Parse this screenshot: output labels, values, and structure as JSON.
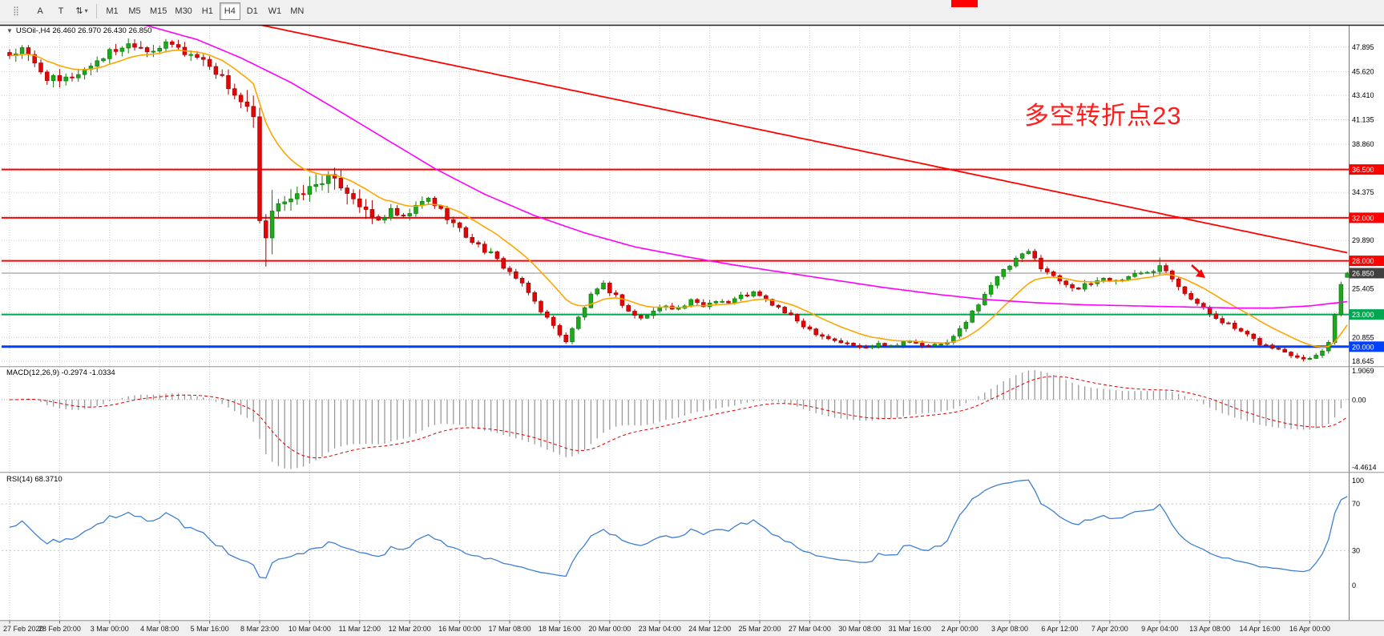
{
  "toolbar": {
    "icons": {
      "handle": "⣿",
      "caret": "▾",
      "collapse_caret": "▼"
    },
    "buttons": [
      {
        "label": "A"
      },
      {
        "label": "T"
      },
      {
        "label": "⇅"
      }
    ],
    "timeframes": [
      {
        "label": "M1",
        "active": false
      },
      {
        "label": "M5",
        "active": false
      },
      {
        "label": "M15",
        "active": false
      },
      {
        "label": "M30",
        "active": false
      },
      {
        "label": "H1",
        "active": false
      },
      {
        "label": "H4",
        "active": true
      },
      {
        "label": "D1",
        "active": false
      },
      {
        "label": "W1",
        "active": false
      },
      {
        "label": "MN",
        "active": false
      }
    ],
    "artifact_color": "#FF0000"
  },
  "chart": {
    "title_line": "USOil-,H4 26.460 26.970 26.430 26.850",
    "ohlc": {
      "open": "26.460",
      "high": "26.970",
      "low": "26.430",
      "close": "26.850"
    },
    "macd_label": "MACD(12,26,9) -0.2974 -1.0334",
    "rsi_label": "RSI(14) 68.3710",
    "annotation": {
      "text": "多空转折点23",
      "color": "#FF1E1E"
    },
    "current_price": {
      "value": 26.85,
      "label": "26.850",
      "tag_bg": "#404040"
    },
    "levels": [
      {
        "price": 36.5,
        "label": "36.500",
        "color": "#FF0000"
      },
      {
        "price": 32.0,
        "label": "32.000",
        "color": "#FF0000"
      },
      {
        "price": 28.0,
        "label": "28.000",
        "color": "#FF0000"
      },
      {
        "price": 23.0,
        "label": "23.000",
        "color": "#00A651"
      },
      {
        "price": 20.0,
        "label": "20.000",
        "color": "#0040FF"
      }
    ],
    "price_axis": {
      "labels": [
        47.895,
        45.62,
        43.41,
        41.135,
        38.86,
        34.375,
        29.89,
        25.405,
        20.855,
        18.645
      ],
      "grid_extra": [
        36.585,
        32.15,
        27.66,
        23.175
      ]
    },
    "time_axis": {
      "bars_per_label": 8,
      "labels": [
        "27 Feb 2020",
        "28 Feb 20:00",
        "3 Mar 00:00",
        "4 Mar 08:00",
        "5 Mar 16:00",
        "8 Mar 23:00",
        "10 Mar 04:00",
        "11 Mar 12:00",
        "12 Mar 20:00",
        "16 Mar 00:00",
        "17 Mar 08:00",
        "18 Mar 16:00",
        "20 Mar 00:00",
        "23 Mar 04:00",
        "24 Mar 12:00",
        "25 Mar 20:00",
        "27 Mar 04:00",
        "30 Mar 08:00",
        "31 Mar 16:00",
        "2 Apr 00:00",
        "3 Apr 08:00",
        "6 Apr 12:00",
        "7 Apr 20:00",
        "9 Apr 04:00",
        "13 Apr 08:00",
        "14 Apr 16:00",
        "16 Apr 00:00"
      ]
    }
  },
  "chart_data": {
    "type": "candlestick+indicators",
    "symbol": "USOil-",
    "timeframe": "H4",
    "bars": 215,
    "colors": {
      "candle_up": "#1CAA1C",
      "candle_up_stroke": "#0E7A0E",
      "candle_down": "#E00707",
      "candle_down_stroke": "#A80000",
      "ma_fast": "#FFA500",
      "ma_mid": "#FF00FF",
      "ma_long": "#FF0000",
      "grid": "#CDCDCD",
      "bid_line": "#8A8A8A"
    },
    "close_anchors": [
      [
        0,
        47.2
      ],
      [
        2,
        47.6
      ],
      [
        4,
        46.3
      ],
      [
        6,
        45.1
      ],
      [
        8,
        44.6
      ],
      [
        10,
        45.2
      ],
      [
        12,
        45.8
      ],
      [
        14,
        46.7
      ],
      [
        16,
        47.4
      ],
      [
        18,
        48.0
      ],
      [
        20,
        48.3
      ],
      [
        22,
        47.7
      ],
      [
        24,
        47.9
      ],
      [
        26,
        48.1
      ],
      [
        28,
        47.4
      ],
      [
        30,
        47.0
      ],
      [
        32,
        46.3
      ],
      [
        34,
        45.0
      ],
      [
        36,
        43.5
      ],
      [
        38,
        42.1
      ],
      [
        39,
        41.2
      ],
      [
        40,
        31.6
      ],
      [
        41,
        29.9
      ],
      [
        42,
        32.8
      ],
      [
        43,
        33.5
      ],
      [
        45,
        33.6
      ],
      [
        47,
        34.4
      ],
      [
        49,
        35.1
      ],
      [
        51,
        35.8
      ],
      [
        53,
        35.0
      ],
      [
        55,
        33.9
      ],
      [
        57,
        32.5
      ],
      [
        59,
        31.7
      ],
      [
        61,
        32.6
      ],
      [
        63,
        31.9
      ],
      [
        65,
        33.0
      ],
      [
        67,
        33.8
      ],
      [
        69,
        32.7
      ],
      [
        71,
        31.5
      ],
      [
        73,
        30.3
      ],
      [
        75,
        29.4
      ],
      [
        77,
        28.6
      ],
      [
        79,
        27.5
      ],
      [
        81,
        26.4
      ],
      [
        83,
        25.0
      ],
      [
        85,
        23.4
      ],
      [
        87,
        21.9
      ],
      [
        89,
        20.5
      ],
      [
        91,
        22.7
      ],
      [
        93,
        24.7
      ],
      [
        95,
        25.7
      ],
      [
        97,
        24.7
      ],
      [
        99,
        23.3
      ],
      [
        101,
        22.6
      ],
      [
        103,
        23.3
      ],
      [
        105,
        23.9
      ],
      [
        107,
        23.5
      ],
      [
        109,
        24.2
      ],
      [
        111,
        23.8
      ],
      [
        113,
        24.4
      ],
      [
        115,
        24.1
      ],
      [
        117,
        24.7
      ],
      [
        119,
        25.0
      ],
      [
        121,
        24.3
      ],
      [
        123,
        23.6
      ],
      [
        125,
        22.8
      ],
      [
        127,
        22.0
      ],
      [
        129,
        21.3
      ],
      [
        131,
        20.8
      ],
      [
        133,
        20.4
      ],
      [
        135,
        20.1
      ],
      [
        137,
        19.9
      ],
      [
        139,
        20.4
      ],
      [
        141,
        20.1
      ],
      [
        143,
        20.5
      ],
      [
        145,
        20.3
      ],
      [
        147,
        20.0
      ],
      [
        149,
        20.2
      ],
      [
        151,
        20.9
      ],
      [
        153,
        22.3
      ],
      [
        155,
        24.1
      ],
      [
        157,
        25.8
      ],
      [
        159,
        27.0
      ],
      [
        161,
        28.1
      ],
      [
        163,
        28.8
      ],
      [
        165,
        27.5
      ],
      [
        167,
        26.5
      ],
      [
        169,
        25.9
      ],
      [
        171,
        25.4
      ],
      [
        173,
        25.9
      ],
      [
        175,
        26.4
      ],
      [
        177,
        26.1
      ],
      [
        179,
        26.6
      ],
      [
        181,
        26.8
      ],
      [
        183,
        27.2
      ],
      [
        184,
        27.8
      ],
      [
        186,
        26.5
      ],
      [
        188,
        25.1
      ],
      [
        190,
        24.0
      ],
      [
        192,
        23.1
      ],
      [
        194,
        22.4
      ],
      [
        196,
        21.7
      ],
      [
        198,
        21.0
      ],
      [
        200,
        20.3
      ],
      [
        202,
        19.9
      ],
      [
        204,
        19.5
      ],
      [
        206,
        19.1
      ],
      [
        208,
        18.9
      ],
      [
        209,
        19.2
      ],
      [
        210,
        19.6
      ],
      [
        211,
        20.4
      ],
      [
        212,
        23.0
      ],
      [
        213,
        25.8
      ],
      [
        214,
        26.85
      ]
    ],
    "special_bars": {
      "41": {
        "low": 27.45
      },
      "42": {
        "high": 34.6,
        "low": 28.6
      },
      "51": {
        "high": 36.35
      },
      "163": {
        "high": 29.1
      },
      "184": {
        "high": 28.3
      },
      "207": {
        "low": 18.62
      },
      "214": {
        "open": 26.46,
        "high": 26.97,
        "low": 26.43,
        "close": 26.85
      }
    },
    "ma_fast_period": 13,
    "ma_mid_anchors": [
      [
        0,
        51.5
      ],
      [
        15,
        50.6
      ],
      [
        22,
        49.9
      ],
      [
        30,
        48.6
      ],
      [
        37,
        46.9
      ],
      [
        45,
        44.6
      ],
      [
        52,
        42.2
      ],
      [
        60,
        39.4
      ],
      [
        68,
        36.6
      ],
      [
        76,
        34.2
      ],
      [
        84,
        32.2
      ],
      [
        92,
        30.6
      ],
      [
        100,
        29.3
      ],
      [
        108,
        28.4
      ],
      [
        116,
        27.6
      ],
      [
        124,
        26.9
      ],
      [
        132,
        26.2
      ],
      [
        140,
        25.5
      ],
      [
        148,
        24.9
      ],
      [
        156,
        24.4
      ],
      [
        164,
        24.1
      ],
      [
        172,
        23.9
      ],
      [
        180,
        23.8
      ],
      [
        188,
        23.7
      ],
      [
        196,
        23.6
      ],
      [
        202,
        23.6
      ],
      [
        208,
        23.8
      ],
      [
        214,
        24.2
      ]
    ],
    "ma_long": {
      "base_bar": 30,
      "base": 51.2,
      "slope": -0.122
    },
    "macd": {
      "label": "MACD(12,26,9)",
      "values": "-0.2974 -1.0334",
      "fast": 12,
      "slow": 26,
      "signal": 9,
      "scale_max": 1.9069,
      "scale_min": -4.4614,
      "axis": [
        "1.9069",
        "0.00",
        "-4.4614"
      ],
      "hist_color": "#9A9A9A",
      "signal_color": "#E00000"
    },
    "rsi": {
      "label": "RSI(14)",
      "value": "68.3710",
      "period": 14,
      "levels": [
        "100",
        "70",
        "30",
        "0"
      ],
      "level_values": [
        100,
        70,
        30,
        0
      ],
      "color": "#3E7FD2"
    }
  }
}
